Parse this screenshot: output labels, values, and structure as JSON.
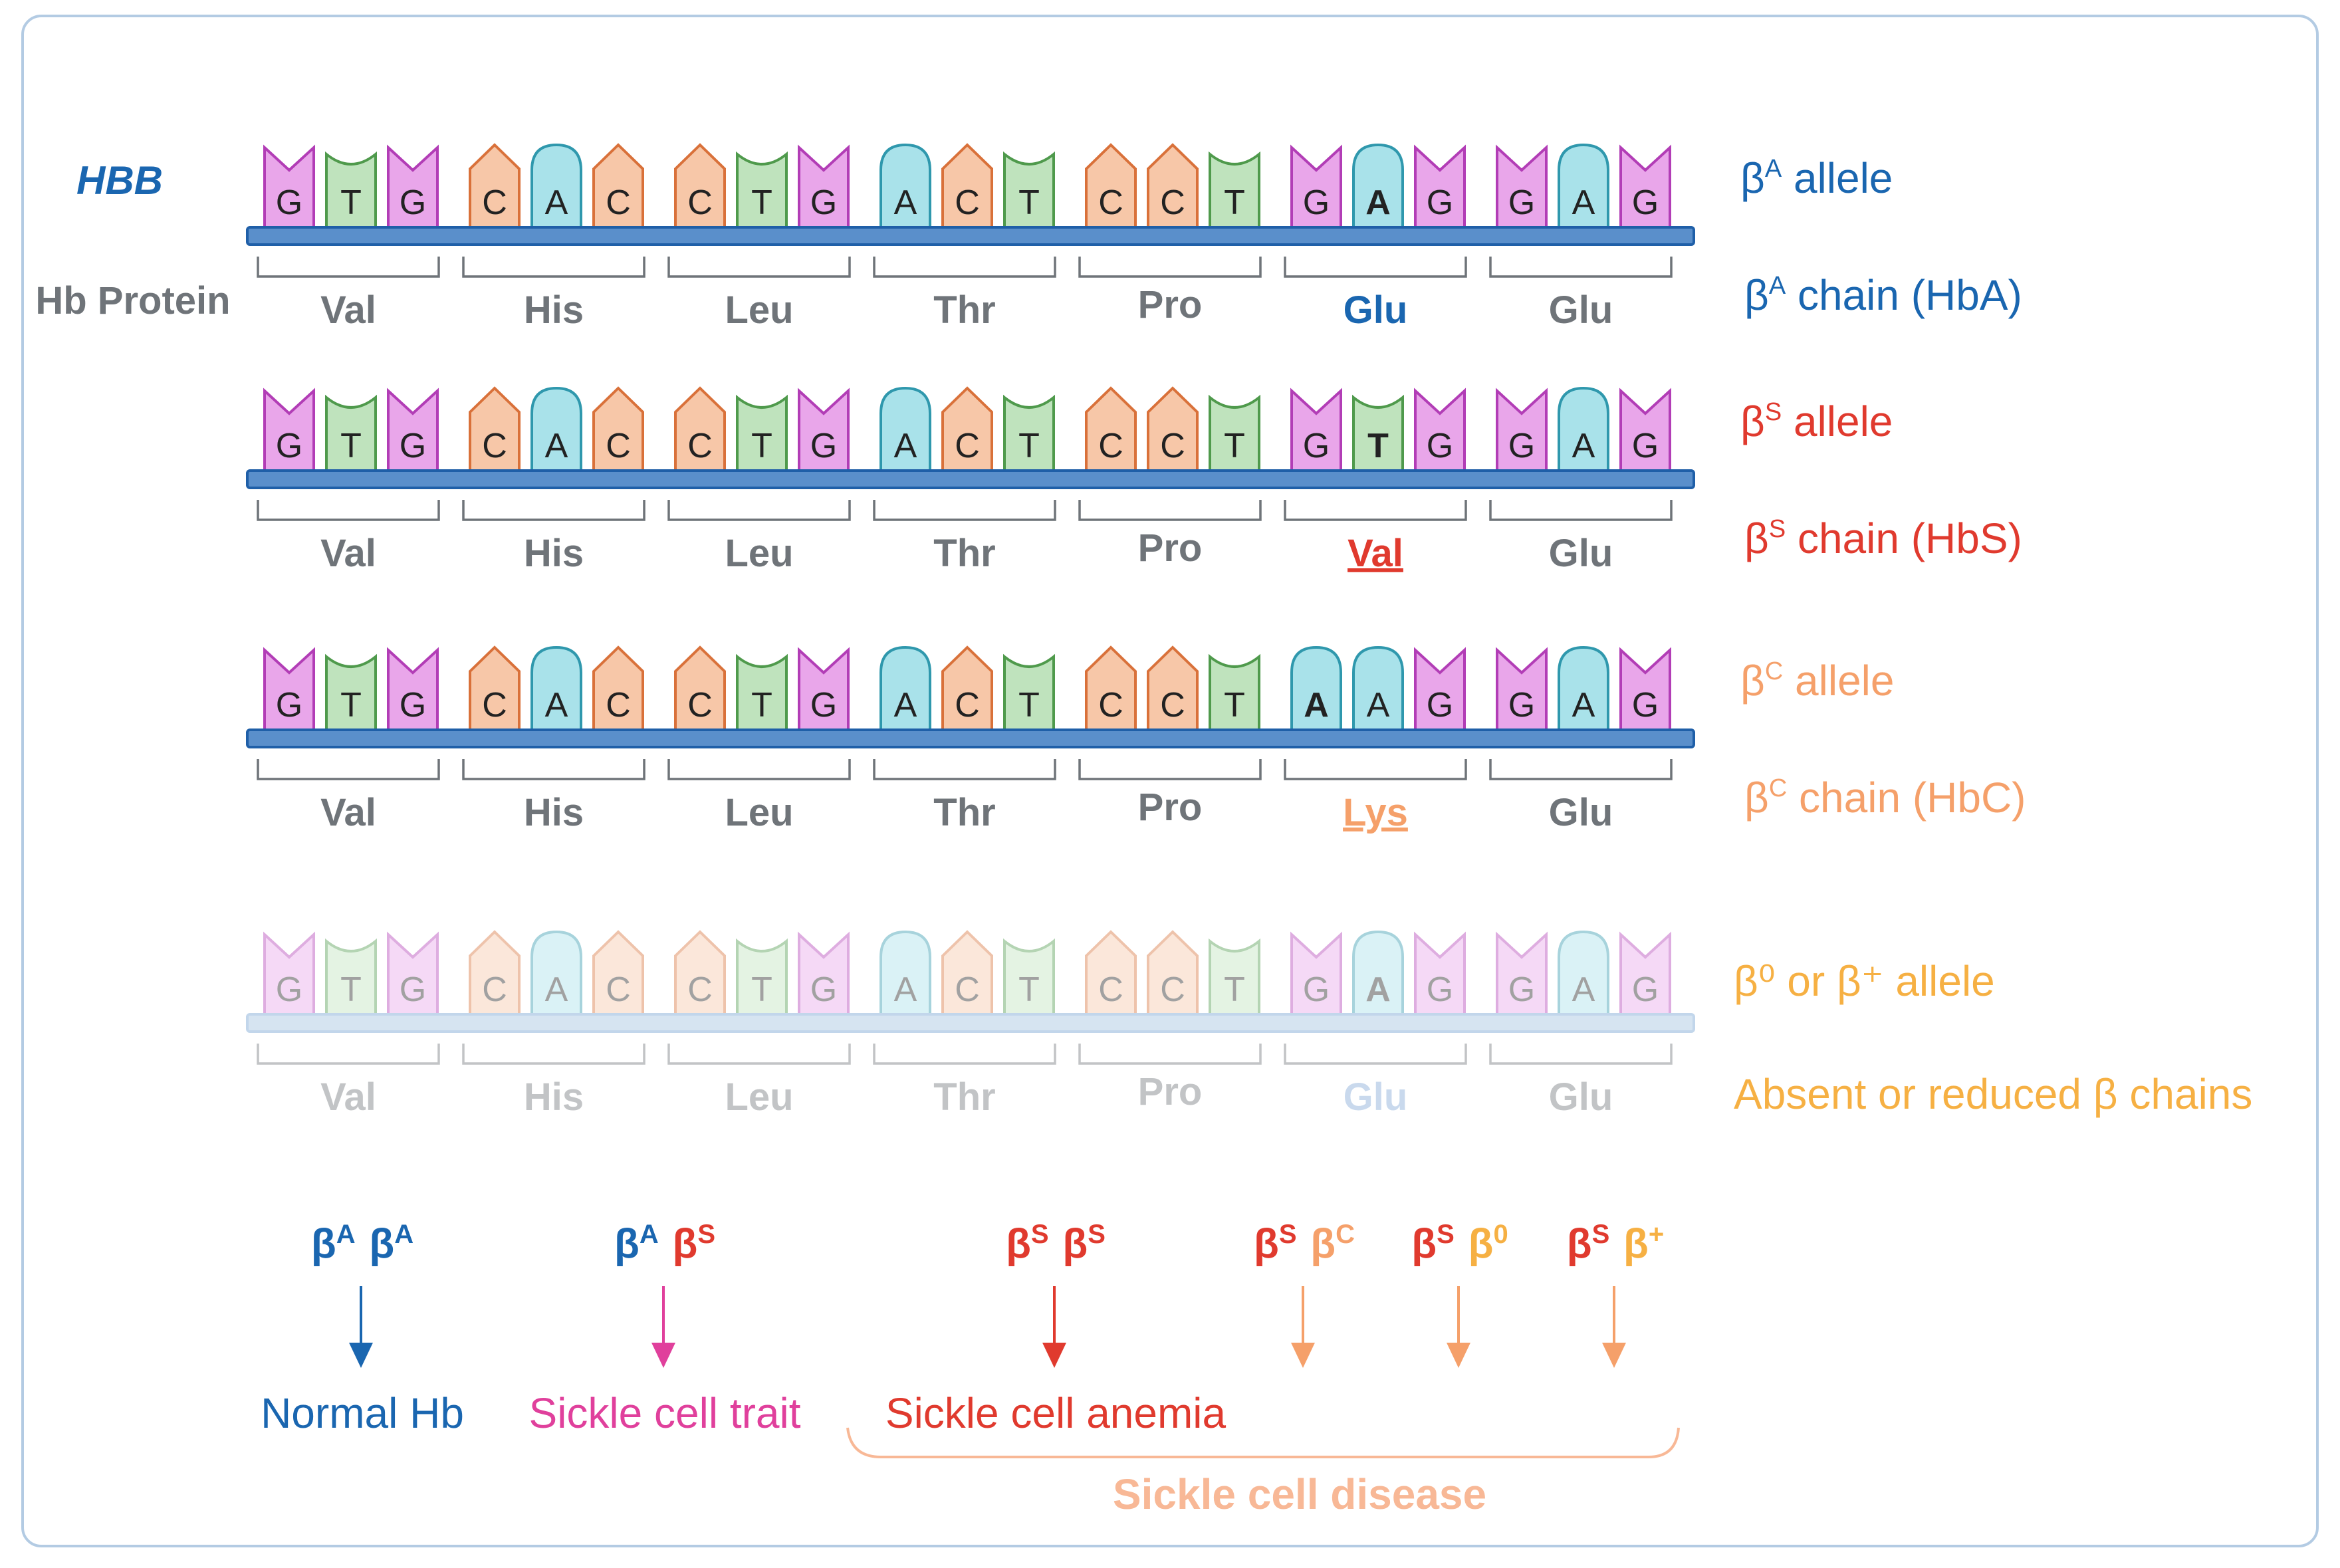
{
  "colors": {
    "G": {
      "fill": "#e9a6ea",
      "stroke": "#b23db6"
    },
    "T": {
      "fill": "#bfe3bd",
      "stroke": "#4f9a4c"
    },
    "C": {
      "fill": "#f7c7a8",
      "stroke": "#d9713a"
    },
    "A": {
      "fill": "#a9e2ea",
      "stroke": "#2f98ad"
    },
    "A_base": "#1a66b0",
    "S_red": "#e03a2e",
    "C_orange": "#f5a06a",
    "Z_gold": "#f6b043",
    "gray": "#6f7479",
    "magenta": "#e0409c",
    "sickle_disease": "#f8b896"
  },
  "labels": {
    "gene": "HBB",
    "protein": "Hb Protein"
  },
  "rows": [
    {
      "id": "beta-a",
      "nucleotides": [
        "G",
        "T",
        "G",
        "C",
        "A",
        "C",
        "C",
        "T",
        "G",
        "A",
        "C",
        "T",
        "C",
        "C",
        "T",
        "G",
        "A",
        "G",
        "G",
        "A",
        "G"
      ],
      "highlight_index": 16,
      "highlight_base": "A",
      "amino_acids": [
        "Val",
        "His",
        "Leu",
        "Thr",
        "Pro",
        "Glu",
        "Glu"
      ],
      "highlight_codon": 5,
      "highlight_color": "#1a66b0",
      "underline": false,
      "faded": false,
      "allele_symbol": "β",
      "allele_sup": "A",
      "allele_rest": " allele",
      "chain_symbol": "β",
      "chain_sup": "A",
      "chain_rest": " chain (HbA)",
      "label_color": "#1a66b0"
    },
    {
      "id": "beta-s",
      "nucleotides": [
        "G",
        "T",
        "G",
        "C",
        "A",
        "C",
        "C",
        "T",
        "G",
        "A",
        "C",
        "T",
        "C",
        "C",
        "T",
        "G",
        "T",
        "G",
        "G",
        "A",
        "G"
      ],
      "highlight_index": 16,
      "highlight_base": "T",
      "amino_acids": [
        "Val",
        "His",
        "Leu",
        "Thr",
        "Pro",
        "Val",
        "Glu"
      ],
      "highlight_codon": 5,
      "highlight_color": "#e03a2e",
      "underline": true,
      "faded": false,
      "allele_symbol": "β",
      "allele_sup": "S",
      "allele_rest": " allele",
      "chain_symbol": "β",
      "chain_sup": "S",
      "chain_rest": " chain (HbS)",
      "label_color": "#e03a2e"
    },
    {
      "id": "beta-c",
      "nucleotides": [
        "G",
        "T",
        "G",
        "C",
        "A",
        "C",
        "C",
        "T",
        "G",
        "A",
        "C",
        "T",
        "C",
        "C",
        "T",
        "A",
        "A",
        "G",
        "G",
        "A",
        "G"
      ],
      "highlight_index": 15,
      "highlight_base": "A",
      "amino_acids": [
        "Val",
        "His",
        "Leu",
        "Thr",
        "Pro",
        "Lys",
        "Glu"
      ],
      "highlight_codon": 5,
      "highlight_color": "#f5a06a",
      "underline": true,
      "faded": false,
      "allele_symbol": "β",
      "allele_sup": "C",
      "allele_rest": " allele",
      "chain_symbol": "β",
      "chain_sup": "C",
      "chain_rest": " chain (HbC)",
      "label_color": "#f5a06a"
    },
    {
      "id": "beta-zero",
      "nucleotides": [
        "G",
        "T",
        "G",
        "C",
        "A",
        "C",
        "C",
        "T",
        "G",
        "A",
        "C",
        "T",
        "C",
        "C",
        "T",
        "G",
        "A",
        "G",
        "G",
        "A",
        "G"
      ],
      "highlight_index": 16,
      "highlight_base": "A",
      "amino_acids": [
        "Val",
        "His",
        "Leu",
        "Thr",
        "Pro",
        "Glu",
        "Glu"
      ],
      "highlight_codon": 5,
      "highlight_color": "#7fa7d6",
      "underline": false,
      "faded": true,
      "allele_line": "β⁰ or β⁺ allele",
      "chain_line": "Absent or reduced β chains",
      "label_color": "#f6b043"
    }
  ],
  "genotypes": [
    {
      "parts": [
        {
          "sym": "β",
          "sup": "A",
          "color": "#1a66b0"
        },
        {
          "sym": "β",
          "sup": "A",
          "color": "#1a66b0"
        }
      ],
      "arrow_color": "#1a66b0",
      "outcome": "Normal Hb",
      "outcome_color": "#1a66b0"
    },
    {
      "parts": [
        {
          "sym": "β",
          "sup": "A",
          "color": "#1a66b0"
        },
        {
          "sym": "β",
          "sup": "S",
          "color": "#e03a2e"
        }
      ],
      "arrow_color": "#e0409c",
      "outcome": "Sickle cell trait",
      "outcome_color": "#e0409c"
    },
    {
      "parts": [
        {
          "sym": "β",
          "sup": "S",
          "color": "#e03a2e"
        },
        {
          "sym": "β",
          "sup": "S",
          "color": "#e03a2e"
        }
      ],
      "arrow_color": "#e03a2e",
      "outcome": "Sickle cell anemia",
      "outcome_color": "#e03a2e"
    },
    {
      "parts": [
        {
          "sym": "β",
          "sup": "S",
          "color": "#e03a2e"
        },
        {
          "sym": "β",
          "sup": "C",
          "color": "#f5a06a"
        }
      ],
      "arrow_color": "#f5a06a",
      "outcome": "",
      "outcome_color": "#f5a06a"
    },
    {
      "parts": [
        {
          "sym": "β",
          "sup": "S",
          "color": "#e03a2e"
        },
        {
          "sym": "β",
          "sup": "0",
          "color": "#f6b043"
        }
      ],
      "arrow_color": "#f5a06a",
      "outcome": "",
      "outcome_color": "#f5a06a"
    },
    {
      "parts": [
        {
          "sym": "β",
          "sup": "S",
          "color": "#e03a2e"
        },
        {
          "sym": "β",
          "sup": "+",
          "color": "#f6b043"
        }
      ],
      "arrow_color": "#f5a06a",
      "outcome": "",
      "outcome_color": "#f5a06a"
    }
  ],
  "disease_group": "Sickle cell disease"
}
